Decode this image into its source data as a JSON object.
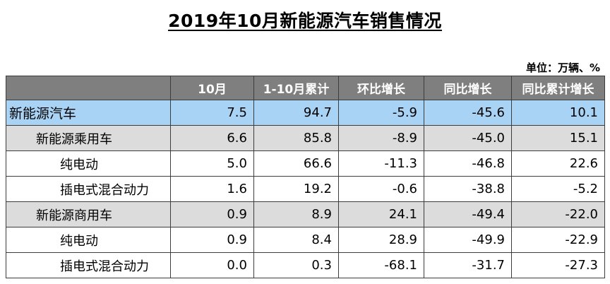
{
  "title": "2019年10月新能源汽车销售情况",
  "unit": "单位：万辆、%",
  "header": [
    "",
    "10月",
    "1-10月累计",
    "环比增长",
    "同比增长",
    "同比累计增长"
  ],
  "rows": [
    {
      "name": "新能源汽车",
      "level": 0,
      "values": [
        "7.5",
        "94.7",
        "-5.9",
        "-45.6",
        "10.1"
      ]
    },
    {
      "name": "新能源乘用车",
      "level": 1,
      "values": [
        "6.6",
        "85.8",
        "-8.9",
        "-45.0",
        "15.1"
      ]
    },
    {
      "name": "纯电动",
      "level": 2,
      "values": [
        "5.0",
        "66.6",
        "-11.3",
        "-46.8",
        "22.6"
      ]
    },
    {
      "name": "插电式混合动力",
      "level": 2,
      "values": [
        "1.6",
        "19.2",
        "-0.6",
        "-38.8",
        "-5.2"
      ]
    },
    {
      "name": "新能源商用车",
      "level": 1,
      "values": [
        "0.9",
        "8.9",
        "24.1",
        "-49.4",
        "-22.0"
      ]
    },
    {
      "name": "纯电动",
      "level": 2,
      "values": [
        "0.9",
        "8.4",
        "28.9",
        "-49.9",
        "-22.9"
      ]
    },
    {
      "name": "插电式混合动力",
      "level": 2,
      "values": [
        "0.0",
        "0.3",
        "-68.1",
        "-31.7",
        "-27.3"
      ]
    }
  ],
  "colors": {
    "header_bg": "#7f7f7f",
    "total_row_bg": "#a9d3f5",
    "subtotal_row_bg": "#dcdcdc"
  }
}
